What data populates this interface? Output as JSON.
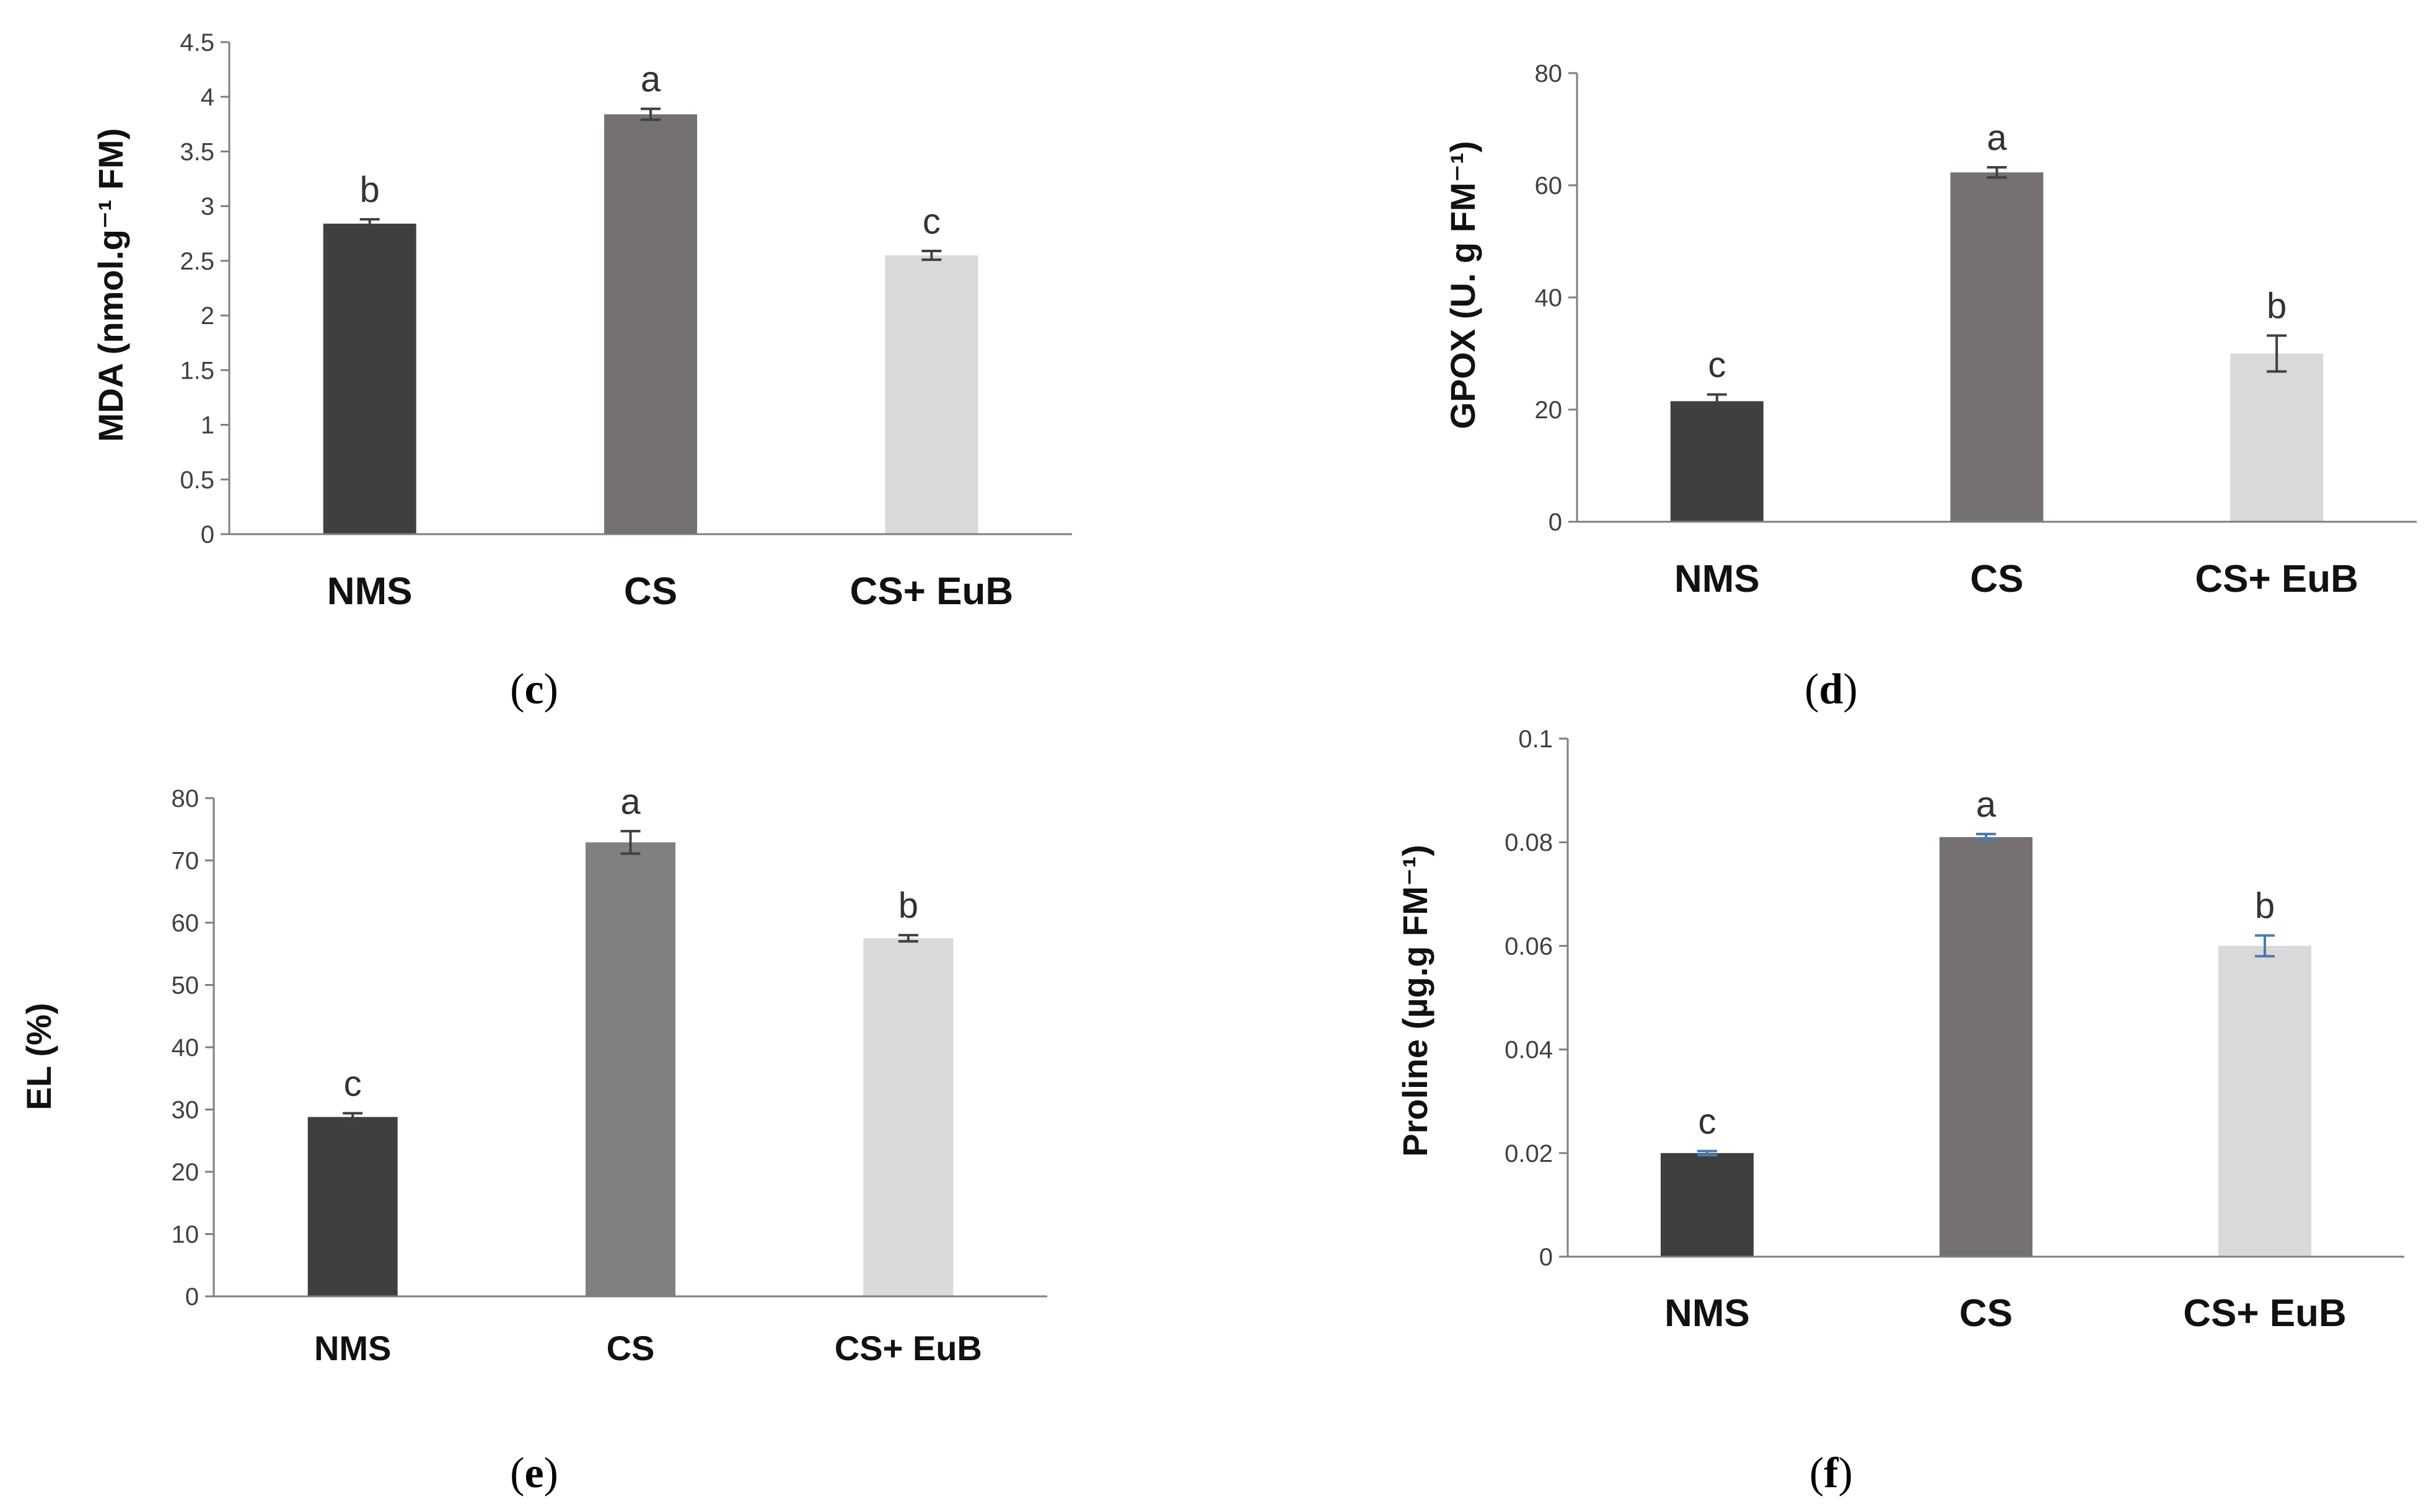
{
  "figure": {
    "panels": [
      {
        "label": "c",
        "text_open": "(",
        "text_close": ")"
      },
      {
        "label": "d",
        "text_open": "(",
        "text_close": ")"
      },
      {
        "label": "e",
        "text_open": "(",
        "text_close": ")"
      },
      {
        "label": "f",
        "text_open": "(",
        "text_close": ")"
      }
    ]
  },
  "chart_data": [
    {
      "type": "bar",
      "panel": "c",
      "ylabel": "MDA (nmol.g⁻¹ FM)",
      "categories": [
        "NMS",
        "CS",
        "CS+ EuB"
      ],
      "values": [
        2.84,
        3.84,
        2.55
      ],
      "errors": [
        0.04,
        0.05,
        0.04
      ],
      "letters": [
        "b",
        "a",
        "c"
      ],
      "colors": [
        "#3f3f3f",
        "#767171",
        "#d9d9d9"
      ],
      "error_color": "#404040",
      "ylim": [
        0,
        4.5
      ],
      "yticks": [
        "0",
        "0.5",
        "1",
        "1.5",
        "2",
        "2.5",
        "3",
        "3.5",
        "4",
        "4.5"
      ],
      "ytick_values": [
        0,
        0.5,
        1,
        1.5,
        2,
        2.5,
        3,
        3.5,
        4,
        4.5
      ]
    },
    {
      "type": "bar",
      "panel": "d",
      "ylabel": "GPOX (U. g FM⁻¹)",
      "categories": [
        "NMS",
        "CS",
        "CS+ EuB"
      ],
      "values": [
        21.5,
        62.3,
        30
      ],
      "errors": [
        1.2,
        0.9,
        3.2
      ],
      "letters": [
        "c",
        "a",
        "b"
      ],
      "colors": [
        "#3f3f3f",
        "#767171",
        "#d9d9d9"
      ],
      "error_color": "#404040",
      "ylim": [
        0,
        80
      ],
      "yticks": [
        "0",
        "20",
        "40",
        "60",
        "80"
      ],
      "ytick_values": [
        0,
        20,
        40,
        60,
        80
      ]
    },
    {
      "type": "bar",
      "panel": "e",
      "ylabel": "EL  (%)",
      "categories": [
        "NMS",
        "CS",
        "CS+ EuB"
      ],
      "values": [
        28.8,
        72.9,
        57.5
      ],
      "errors": [
        0.6,
        1.8,
        0.5
      ],
      "letters": [
        "c",
        "a",
        "b"
      ],
      "colors": [
        "#3f3f3f",
        "#808080",
        "#d9d9d9"
      ],
      "error_color": "#404040",
      "ylim": [
        0,
        80
      ],
      "yticks": [
        "0",
        "10",
        "20",
        "30",
        "40",
        "50",
        "60",
        "70",
        "80"
      ],
      "ytick_values": [
        0,
        10,
        20,
        30,
        40,
        50,
        60,
        70,
        80
      ]
    },
    {
      "type": "bar",
      "panel": "f",
      "ylabel": "Proline (µg.g FM⁻¹)",
      "categories": [
        "NMS",
        "CS",
        "CS+ EuB"
      ],
      "values": [
        0.02,
        0.081,
        0.06
      ],
      "errors": [
        0.0004,
        0.0006,
        0.002
      ],
      "letters": [
        "c",
        "a",
        "b"
      ],
      "colors": [
        "#3f3f3f",
        "#767171",
        "#d9d9d9"
      ],
      "error_color": "#4a7ab3",
      "ylim": [
        0,
        0.1
      ],
      "yticks": [
        "0",
        "0.02",
        "0.04",
        "0.06",
        "0.08",
        "0.1"
      ],
      "ytick_values": [
        0,
        0.02,
        0.04,
        0.06,
        0.08,
        0.1
      ]
    }
  ]
}
